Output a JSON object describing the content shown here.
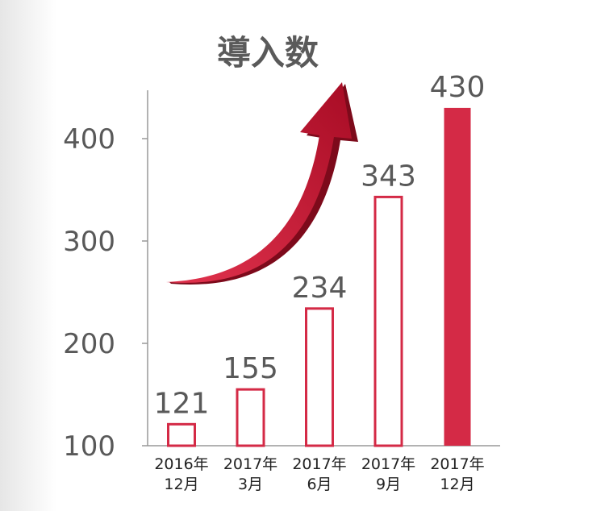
{
  "chart_data": {
    "type": "bar",
    "title": "導入数",
    "categories": [
      [
        "2016年",
        "12月"
      ],
      [
        "2017年",
        "3月"
      ],
      [
        "2017年",
        "6月"
      ],
      [
        "2017年",
        "9月"
      ],
      [
        "2017年",
        "12月"
      ]
    ],
    "values": [
      121,
      155,
      234,
      343,
      430
    ],
    "value_labels": [
      "121",
      "155",
      "234",
      "343",
      "430"
    ],
    "ylim": [
      100,
      430
    ],
    "yticks": [
      100,
      200,
      300,
      400
    ],
    "ytick_labels": [
      "100",
      "200",
      "300",
      "400"
    ],
    "highlight_index": 4,
    "colors": {
      "accent": "#d42a46",
      "arrow": "#c40f2e",
      "text": "#595959"
    },
    "decoration": "upward-curved-arrow"
  }
}
